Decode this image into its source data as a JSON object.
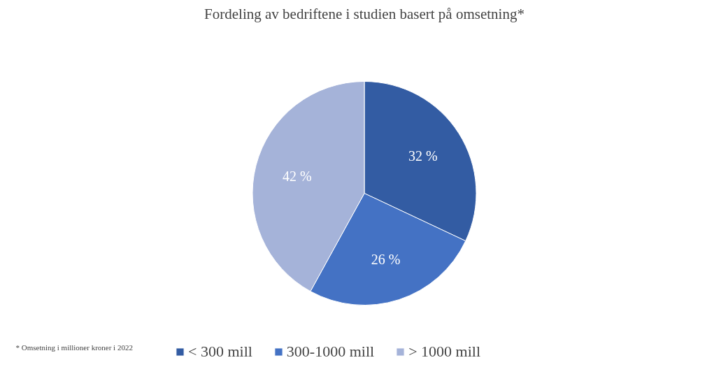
{
  "chart_data": {
    "type": "pie",
    "title": "Fordeling av bedriftene i studien basert på omsetning*",
    "categories": [
      "< 300 mill",
      "300-1000 mill",
      "> 1000 mill"
    ],
    "values": [
      32,
      26,
      42
    ],
    "value_labels": [
      "32 %",
      "26 %",
      "42 %"
    ],
    "colors": [
      "#335ca3",
      "#4472c4",
      "#a5b3d9"
    ],
    "legend": "bottom",
    "annotations": [
      "* Omsetning i millioner kroner i 2022"
    ]
  }
}
